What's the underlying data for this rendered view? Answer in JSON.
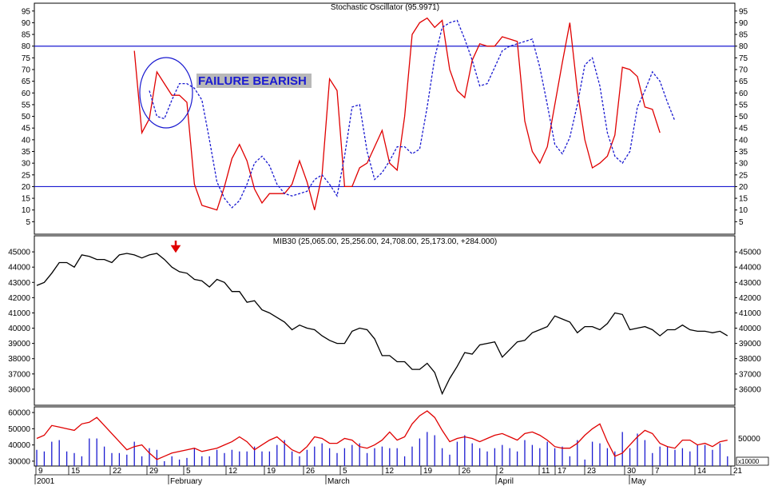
{
  "colors": {
    "price": "#000000",
    "stoch_k": "#e00000",
    "stoch_d": "#1a1ad0",
    "levels": "#1a1ad0",
    "volume_bars": "#1a1ad0",
    "volume_ma": "#e00000",
    "annotation": "#1a1ad0",
    "annotation_bg": "#b8b8b8",
    "arrow": "#e00000"
  },
  "chart_data": [
    {
      "type": "line",
      "title": "Stochastic Oscillator (95.9971)",
      "ylim": [
        0,
        98
      ],
      "yticks": [
        5,
        10,
        15,
        20,
        25,
        30,
        35,
        40,
        45,
        50,
        55,
        60,
        65,
        70,
        75,
        80,
        85,
        90,
        95
      ],
      "levels": [
        20,
        80
      ],
      "annotation": {
        "text": "FAILURE BEARISH",
        "shape": "ellipse"
      },
      "series": [
        {
          "style": "solid",
          "start_index": 13,
          "values": [
            78,
            43,
            49,
            69,
            64,
            59,
            59,
            56,
            21,
            12,
            11,
            10,
            20,
            32,
            38,
            31,
            19,
            13,
            17,
            17,
            17,
            21,
            31,
            22,
            10,
            25,
            66,
            61,
            20,
            20,
            28,
            30,
            37,
            44,
            30,
            27,
            50,
            85,
            90,
            92,
            88,
            91,
            70,
            61,
            58,
            74,
            81,
            80,
            80,
            84,
            83,
            82,
            48,
            35,
            30,
            37,
            55,
            73,
            90,
            61,
            40,
            28,
            30,
            33,
            42,
            71,
            70,
            67,
            54,
            53,
            43
          ]
        },
        {
          "style": "dashed",
          "start_index": 15,
          "values": [
            61,
            50,
            49,
            57,
            64,
            64,
            62,
            57,
            40,
            22,
            15,
            11,
            14,
            21,
            30,
            33,
            29,
            21,
            17,
            16,
            17,
            18,
            23,
            25,
            21,
            16,
            33,
            54,
            55,
            35,
            23,
            26,
            31,
            37,
            37,
            34,
            36,
            54,
            75,
            88,
            90,
            91,
            83,
            74,
            63,
            64,
            71,
            78,
            80,
            81,
            82,
            83,
            71,
            55,
            38,
            34,
            41,
            55,
            72,
            75,
            63,
            43,
            33,
            30,
            35,
            54,
            61,
            69,
            65,
            56,
            48
          ]
        }
      ]
    },
    {
      "type": "line",
      "title": "MIB30 (25,065.00, 25,256.00, 24,708.00, 25,173.00, +284.000)",
      "ylim": [
        35000,
        46000
      ],
      "yticks": [
        36000,
        37000,
        38000,
        39000,
        40000,
        41000,
        42000,
        43000,
        44000,
        45000
      ],
      "annotation_arrow": true,
      "series": [
        {
          "values": [
            42800,
            43000,
            43600,
            44300,
            44300,
            44000,
            44800,
            44700,
            44500,
            44500,
            44300,
            44800,
            44900,
            44800,
            44600,
            44800,
            44900,
            44500,
            44000,
            43700,
            43600,
            43200,
            43100,
            42700,
            43200,
            43000,
            42400,
            42400,
            41700,
            41800,
            41200,
            41000,
            40700,
            40400,
            39900,
            40200,
            40000,
            39900,
            39500,
            39200,
            39000,
            39000,
            39800,
            40000,
            39900,
            39300,
            38200,
            38200,
            37800,
            37800,
            37300,
            37300,
            37700,
            37100,
            35700,
            36700,
            37500,
            38400,
            38300,
            38900,
            39000,
            39100,
            38100,
            38600,
            39100,
            39200,
            39700,
            39900,
            40100,
            40800,
            40600,
            40400,
            39700,
            40100,
            40100,
            39900,
            40300,
            41000,
            40900,
            39900,
            40000,
            40100,
            39900,
            39500,
            39900,
            39900,
            40200,
            39900,
            39800,
            39800,
            39700,
            39800,
            39500
          ]
        }
      ]
    },
    {
      "type": "bar",
      "title": "",
      "ylim": [
        27000,
        63000
      ],
      "yticks": [
        30000,
        40000,
        50000,
        60000
      ],
      "secondary_tick": "50000",
      "unit_label": "x10000",
      "series": [
        {
          "style": "bars",
          "values": [
            37000,
            36000,
            42000,
            43000,
            36000,
            35000,
            33000,
            44000,
            44000,
            39000,
            35000,
            35000,
            34000,
            42000,
            33000,
            38000,
            37000,
            30000,
            33000,
            31000,
            32000,
            38000,
            33000,
            33000,
            37000,
            35000,
            37000,
            36000,
            36000,
            39000,
            36000,
            36000,
            40000,
            43000,
            36000,
            33000,
            37000,
            39000,
            41000,
            38000,
            35000,
            38000,
            40000,
            41000,
            35000,
            38000,
            39000,
            38000,
            38000,
            33000,
            39000,
            44000,
            48000,
            46000,
            38000,
            34000,
            42000,
            46000,
            41000,
            38000,
            36000,
            38000,
            40000,
            38000,
            36000,
            43000,
            40000,
            38000,
            42000,
            38000,
            39000,
            33000,
            43000,
            31000,
            42000,
            41000,
            38000,
            36000,
            48000,
            38000,
            47000,
            43000,
            35000,
            39000,
            39000,
            37000,
            38000,
            36000,
            40000,
            40000,
            37000,
            41000,
            33000
          ]
        },
        {
          "style": "line",
          "values": [
            44000,
            46000,
            52000,
            51000,
            50000,
            49000,
            53000,
            54000,
            57000,
            52000,
            47000,
            42000,
            37000,
            39000,
            40000,
            35000,
            31000,
            33000,
            35000,
            36000,
            37000,
            38000,
            36000,
            37000,
            38000,
            40000,
            42000,
            45000,
            42000,
            37000,
            40000,
            43000,
            45000,
            41000,
            37000,
            35000,
            39000,
            45000,
            44000,
            41000,
            41000,
            44000,
            43000,
            39000,
            38000,
            40000,
            43000,
            48000,
            43000,
            45000,
            53000,
            58000,
            61000,
            57000,
            49000,
            42000,
            44000,
            45000,
            44000,
            42000,
            44000,
            46000,
            47000,
            45000,
            43000,
            47000,
            48000,
            46000,
            43000,
            39000,
            38000,
            38000,
            41000,
            46000,
            50000,
            53000,
            42000,
            33000,
            35000,
            40000,
            45000,
            49000,
            47000,
            41000,
            39000,
            38000,
            43000,
            43000,
            40000,
            41000,
            39000,
            42000,
            43000
          ]
        }
      ]
    }
  ],
  "x_axis": {
    "day_labels": [
      "9",
      "15",
      "22",
      "29",
      "5",
      "12",
      "19",
      "26",
      "5",
      "12",
      "19",
      "26",
      "2",
      "11",
      "17",
      "23",
      "30",
      "7",
      "14",
      "21"
    ],
    "month_labels": [
      "2001",
      "February",
      "March",
      "April",
      "May"
    ]
  }
}
